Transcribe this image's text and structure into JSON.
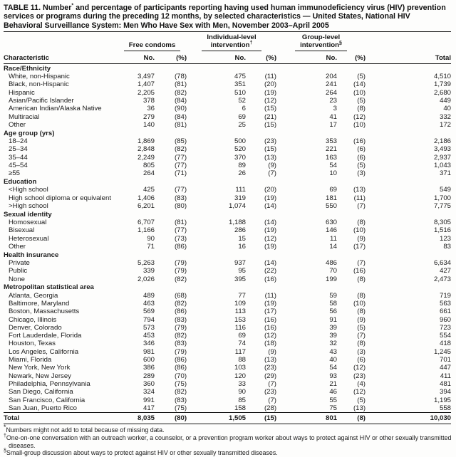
{
  "colors": {
    "ink": "#161616",
    "background": "#fdfdfc"
  },
  "title": {
    "prefix": "TABLE 11. Number",
    "sup": "*",
    "rest": " and percentage of participants reporting having used human immunodeficiency virus (HIV) prevention services or programs during the preceding 12 months, by selected characteristics — United States, National HIV Behavioral Surveillance System: Men Who Have Sex with Men, November 2003–April 2005"
  },
  "header": {
    "characteristic_label": "Characteristic",
    "total_label": "Total",
    "no_label": "No.",
    "pct_label": "(%)",
    "groups": [
      {
        "line1": "",
        "line2": "Free condoms",
        "sup": ""
      },
      {
        "line1": "Individual-level",
        "line2": "intervention",
        "sup": "†"
      },
      {
        "line1": "Group-level",
        "line2": "intervention",
        "sup": "§"
      }
    ]
  },
  "table": {
    "sections": [
      {
        "label": "Race/Ethnicity",
        "rows": [
          {
            "label": "White, non-Hispanic",
            "values": [
              "3,497",
              "(78)",
              "475",
              "(11)",
              "204",
              "(5)",
              "4,510"
            ]
          },
          {
            "label": "Black, non-Hispanic",
            "values": [
              "1,407",
              "(81)",
              "351",
              "(20)",
              "241",
              "(14)",
              "1,739"
            ]
          },
          {
            "label": "Hispanic",
            "values": [
              "2,205",
              "(82)",
              "510",
              "(19)",
              "264",
              "(10)",
              "2,680"
            ]
          },
          {
            "label": "Asian/Pacific Islander",
            "values": [
              "378",
              "(84)",
              "52",
              "(12)",
              "23",
              "(5)",
              "449"
            ]
          },
          {
            "label": "American Indian/Alaska Native",
            "values": [
              "36",
              "(90)",
              "6",
              "(15)",
              "3",
              "(8)",
              "40"
            ]
          },
          {
            "label": "Multiracial",
            "values": [
              "279",
              "(84)",
              "69",
              "(21)",
              "41",
              "(12)",
              "332"
            ]
          },
          {
            "label": "Other",
            "values": [
              "140",
              "(81)",
              "25",
              "(15)",
              "17",
              "(10)",
              "172"
            ]
          }
        ]
      },
      {
        "label": "Age group (yrs)",
        "rows": [
          {
            "label": "18–24",
            "values": [
              "1,869",
              "(85)",
              "500",
              "(23)",
              "353",
              "(16)",
              "2,186"
            ]
          },
          {
            "label": "25–34",
            "values": [
              "2,848",
              "(82)",
              "520",
              "(15)",
              "221",
              "(6)",
              "3,493"
            ]
          },
          {
            "label": "35–44",
            "values": [
              "2,249",
              "(77)",
              "370",
              "(13)",
              "163",
              "(6)",
              "2,937"
            ]
          },
          {
            "label": "45–54",
            "values": [
              "805",
              "(77)",
              "89",
              "(9)",
              "54",
              "(5)",
              "1,043"
            ]
          },
          {
            "label": "≥55",
            "values": [
              "264",
              "(71)",
              "26",
              "(7)",
              "10",
              "(3)",
              "371"
            ]
          }
        ]
      },
      {
        "label": "Education",
        "rows": [
          {
            "label": "<High school",
            "values": [
              "425",
              "(77)",
              "111",
              "(20)",
              "69",
              "(13)",
              "549"
            ]
          },
          {
            "label": "High school diploma or equivalent",
            "values": [
              "1,406",
              "(83)",
              "319",
              "(19)",
              "181",
              "(11)",
              "1,700"
            ]
          },
          {
            "label": ">High school",
            "values": [
              "6,201",
              "(80)",
              "1,074",
              "(14)",
              "550",
              "(7)",
              "7,775"
            ]
          }
        ]
      },
      {
        "label": "Sexual identity",
        "rows": [
          {
            "label": "Homosexual",
            "values": [
              "6,707",
              "(81)",
              "1,188",
              "(14)",
              "630",
              "(8)",
              "8,305"
            ]
          },
          {
            "label": "Bisexual",
            "values": [
              "1,166",
              "(77)",
              "286",
              "(19)",
              "146",
              "(10)",
              "1,516"
            ]
          },
          {
            "label": "Heterosexual",
            "values": [
              "90",
              "(73)",
              "15",
              "(12)",
              "11",
              "(9)",
              "123"
            ]
          },
          {
            "label": "Other",
            "values": [
              "71",
              "(86)",
              "16",
              "(19)",
              "14",
              "(17)",
              "83"
            ]
          }
        ]
      },
      {
        "label": "Health insurance",
        "rows": [
          {
            "label": "Private",
            "values": [
              "5,263",
              "(79)",
              "937",
              "(14)",
              "486",
              "(7)",
              "6,634"
            ]
          },
          {
            "label": "Public",
            "values": [
              "339",
              "(79)",
              "95",
              "(22)",
              "70",
              "(16)",
              "427"
            ]
          },
          {
            "label": "None",
            "values": [
              "2,026",
              "(82)",
              "395",
              "(16)",
              "199",
              "(8)",
              "2,473"
            ]
          }
        ]
      },
      {
        "label": "Metropolitan statistical area",
        "rows": [
          {
            "label": "Atlanta, Georgia",
            "values": [
              "489",
              "(68)",
              "77",
              "(11)",
              "59",
              "(8)",
              "719"
            ]
          },
          {
            "label": "Baltimore, Maryland",
            "values": [
              "463",
              "(82)",
              "109",
              "(19)",
              "58",
              "(10)",
              "563"
            ]
          },
          {
            "label": "Boston, Massachusetts",
            "values": [
              "569",
              "(86)",
              "113",
              "(17)",
              "56",
              "(8)",
              "661"
            ]
          },
          {
            "label": "Chicago, Illinois",
            "values": [
              "794",
              "(83)",
              "153",
              "(16)",
              "91",
              "(9)",
              "960"
            ]
          },
          {
            "label": "Denver, Colorado",
            "values": [
              "573",
              "(79)",
              "116",
              "(16)",
              "39",
              "(5)",
              "723"
            ]
          },
          {
            "label": "Fort Lauderdale, Florida",
            "values": [
              "453",
              "(82)",
              "69",
              "(12)",
              "39",
              "(7)",
              "554"
            ]
          },
          {
            "label": "Houston, Texas",
            "values": [
              "346",
              "(83)",
              "74",
              "(18)",
              "32",
              "(8)",
              "418"
            ]
          },
          {
            "label": "Los Angeles, California",
            "values": [
              "981",
              "(79)",
              "117",
              "(9)",
              "43",
              "(3)",
              "1,245"
            ]
          },
          {
            "label": "Miami, Florida",
            "values": [
              "600",
              "(86)",
              "88",
              "(13)",
              "40",
              "(6)",
              "701"
            ]
          },
          {
            "label": "New York, New York",
            "values": [
              "386",
              "(86)",
              "103",
              "(23)",
              "54",
              "(12)",
              "447"
            ]
          },
          {
            "label": "Newark, New Jersey",
            "values": [
              "289",
              "(70)",
              "120",
              "(29)",
              "93",
              "(23)",
              "411"
            ]
          },
          {
            "label": "Philadelphia, Pennsylvania",
            "values": [
              "360",
              "(75)",
              "33",
              "(7)",
              "21",
              "(4)",
              "481"
            ]
          },
          {
            "label": "San Diego, California",
            "values": [
              "324",
              "(82)",
              "90",
              "(23)",
              "46",
              "(12)",
              "394"
            ]
          },
          {
            "label": "San Francisco, California",
            "values": [
              "991",
              "(83)",
              "85",
              "(7)",
              "55",
              "(5)",
              "1,195"
            ]
          },
          {
            "label": "San Juan, Puerto Rico",
            "values": [
              "417",
              "(75)",
              "158",
              "(28)",
              "75",
              "(13)",
              "558"
            ]
          }
        ]
      }
    ],
    "total_row": {
      "label": "Total",
      "values": [
        "8,035",
        "(80)",
        "1,505",
        "(15)",
        "801",
        "(8)",
        "10,030"
      ]
    }
  },
  "footnotes": [
    {
      "marker": "*",
      "text": "Numbers might not add to total because of missing data."
    },
    {
      "marker": "†",
      "text": "One-on-one conversation with an outreach worker, a counselor, or a prevention program worker about ways to protect against HIV or other sexually transmitted diseases."
    },
    {
      "marker": "§",
      "text": "Small-group discussion about ways to protect against HIV or other sexually transmitted diseases."
    }
  ]
}
